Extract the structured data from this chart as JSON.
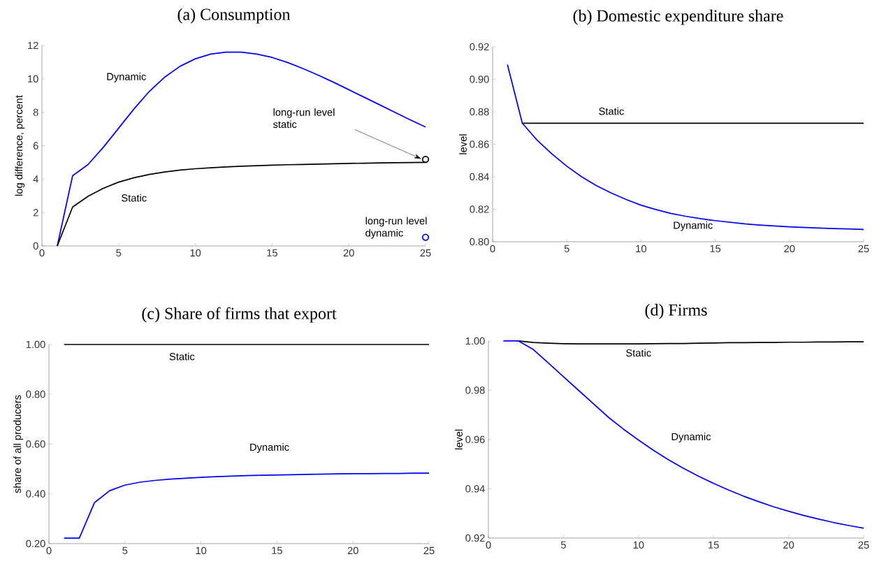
{
  "chart_data": [
    {
      "type": "line",
      "title": "(a) Consumption",
      "ylabel": "log difference, percent",
      "x": [
        1,
        2,
        3,
        4,
        5,
        6,
        7,
        8,
        9,
        10,
        11,
        12,
        13,
        14,
        15,
        16,
        17,
        18,
        19,
        20,
        21,
        22,
        23,
        24,
        25
      ],
      "series": [
        {
          "name": "Dynamic",
          "color": "#0000ff",
          "values": [
            0,
            4.2,
            4.87,
            5.9,
            7.05,
            8.2,
            9.25,
            10.1,
            10.75,
            11.2,
            11.48,
            11.6,
            11.6,
            11.48,
            11.28,
            10.98,
            10.62,
            10.22,
            9.8,
            9.35,
            8.9,
            8.45,
            8.0,
            7.55,
            7.12
          ]
        },
        {
          "name": "Static",
          "color": "#000000",
          "values": [
            0,
            2.33,
            2.97,
            3.45,
            3.82,
            4.08,
            4.28,
            4.43,
            4.54,
            4.62,
            4.68,
            4.73,
            4.77,
            4.8,
            4.83,
            4.86,
            4.88,
            4.9,
            4.92,
            4.94,
            4.95,
            4.97,
            4.98,
            4.99,
            5.0
          ]
        },
        {
          "type": "scatter",
          "color": "#000000",
          "x": [
            25
          ],
          "values": [
            5.18
          ]
        },
        {
          "type": "scatter",
          "color": "#0000ff",
          "x": [
            25
          ],
          "values": [
            0.52
          ]
        }
      ],
      "xlim": [
        0,
        25
      ],
      "xticks": [
        0,
        5,
        10,
        15,
        20,
        25
      ],
      "ylim": [
        0,
        12
      ],
      "yticks": [
        0,
        2,
        4,
        6,
        8,
        10,
        12
      ],
      "annotations": [
        "long-run level static",
        {
          "text": "long-run level dynamic",
          "x": 25,
          "y": 0.52
        }
      ]
    },
    {
      "type": "line",
      "title": "(b) Domestic expenditure share",
      "ylabel": "level",
      "x": [
        1,
        2,
        3,
        4,
        5,
        6,
        7,
        8,
        9,
        10,
        11,
        12,
        13,
        14,
        15,
        16,
        17,
        18,
        19,
        20,
        21,
        22,
        23,
        24,
        25
      ],
      "series": [
        {
          "name": "Dynamic",
          "color": "#0000ff",
          "values": [
            0.909,
            0.873,
            0.8625,
            0.854,
            0.8465,
            0.84,
            0.8345,
            0.83,
            0.826,
            0.8225,
            0.8198,
            0.8175,
            0.8157,
            0.8142,
            0.813,
            0.812,
            0.811,
            0.8103,
            0.8097,
            0.8092,
            0.8088,
            0.8084,
            0.8081,
            0.8079,
            0.8076
          ]
        },
        {
          "name": "Static",
          "color": "#000000",
          "values": [
            null,
            0.873,
            0.873,
            0.873,
            0.873,
            0.873,
            0.873,
            0.873,
            0.873,
            0.873,
            0.873,
            0.873,
            0.873,
            0.873,
            0.873,
            0.873,
            0.873,
            0.873,
            0.873,
            0.873,
            0.873,
            0.873,
            0.873,
            0.873,
            0.873
          ]
        }
      ],
      "xlim": [
        0,
        25
      ],
      "xticks": [
        0,
        5,
        10,
        15,
        20,
        25
      ],
      "ylim": [
        0.8,
        0.92
      ],
      "yticks": [
        {
          "value": 0.8,
          "label": "0.80"
        },
        {
          "value": 0.82,
          "label": "0.82"
        },
        {
          "value": 0.84,
          "label": "0.84"
        },
        {
          "value": 0.86,
          "label": "0.86"
        },
        {
          "value": 0.88,
          "label": "0.88"
        },
        {
          "value": 0.9,
          "label": "0.90"
        },
        {
          "value": 0.92,
          "label": "0.92"
        }
      ]
    },
    {
      "type": "line",
      "title": "(c) Share of firms that export",
      "ylabel": "share of all producers",
      "x": [
        1,
        2,
        3,
        4,
        5,
        6,
        7,
        8,
        9,
        10,
        11,
        12,
        13,
        14,
        15,
        16,
        17,
        18,
        19,
        20,
        21,
        22,
        23,
        24,
        25
      ],
      "series": [
        {
          "name": "Static",
          "color": "#000000",
          "values": [
            1,
            1,
            1,
            1,
            1,
            1,
            1,
            1,
            1,
            1,
            1,
            1,
            1,
            1,
            1,
            1,
            1,
            1,
            1,
            1,
            1,
            1,
            1,
            1,
            1
          ]
        },
        {
          "name": "Dynamic",
          "color": "#0000ff",
          "values": [
            0.222,
            0.222,
            0.365,
            0.413,
            0.435,
            0.447,
            0.454,
            0.459,
            0.463,
            0.466,
            0.469,
            0.471,
            0.473,
            0.475,
            0.476,
            0.477,
            0.478,
            0.479,
            0.48,
            0.481,
            0.481,
            0.482,
            0.482,
            0.483,
            0.483
          ]
        }
      ],
      "xlim": [
        0,
        25
      ],
      "xticks": [
        0,
        5,
        10,
        15,
        20,
        25
      ],
      "ylim": [
        0.2,
        1.0
      ],
      "yticks": [
        {
          "value": 0.2,
          "label": "0.20"
        },
        {
          "value": 0.4,
          "label": "0.40"
        },
        {
          "value": 0.6,
          "label": "0.60"
        },
        {
          "value": 0.8,
          "label": "0.80"
        },
        {
          "value": 1.0,
          "label": "1.00"
        }
      ]
    },
    {
      "type": "line",
      "title": "(d) Firms",
      "ylabel": "level",
      "x": [
        1,
        2,
        3,
        4,
        5,
        6,
        7,
        8,
        9,
        10,
        11,
        12,
        13,
        14,
        15,
        16,
        17,
        18,
        19,
        20,
        21,
        22,
        23,
        24,
        25
      ],
      "series": [
        {
          "name": "Static",
          "color": "#000000",
          "values": [
            null,
            1.0,
            0.9994,
            0.9991,
            0.9989,
            0.9988,
            0.9988,
            0.9988,
            0.9988,
            0.9988,
            0.9989,
            0.999,
            0.999,
            0.9991,
            0.9992,
            0.9993,
            0.9993,
            0.9994,
            0.9994,
            0.9995,
            0.9995,
            0.9996,
            0.9996,
            0.9997,
            0.9997
          ]
        },
        {
          "name": "Dynamic",
          "color": "#0000ff",
          "values": [
            1.0,
            1.0,
            0.9965,
            0.991,
            0.9855,
            0.98,
            0.9745,
            0.969,
            0.9642,
            0.9598,
            0.9556,
            0.9518,
            0.9483,
            0.9451,
            0.9422,
            0.9395,
            0.937,
            0.9348,
            0.9327,
            0.9309,
            0.9292,
            0.9277,
            0.9263,
            0.9251,
            0.924
          ]
        }
      ],
      "xlim": [
        0,
        25
      ],
      "xticks": [
        0,
        5,
        10,
        15,
        20,
        25
      ],
      "ylim": [
        0.92,
        1.0
      ],
      "yticks": [
        {
          "value": 0.92,
          "label": "0.92"
        },
        {
          "value": 0.94,
          "label": "0.94"
        },
        {
          "value": 0.96,
          "label": "0.96"
        },
        {
          "value": 0.98,
          "label": "0.98"
        },
        {
          "value": 1.0,
          "label": "1.00"
        }
      ]
    }
  ]
}
